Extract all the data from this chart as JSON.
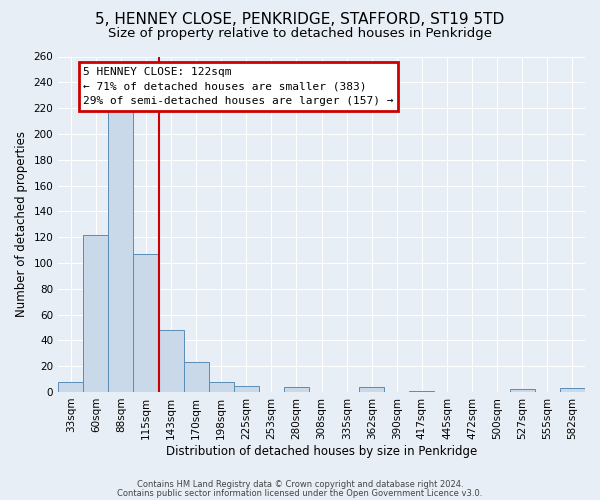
{
  "title": "5, HENNEY CLOSE, PENKRIDGE, STAFFORD, ST19 5TD",
  "subtitle": "Size of property relative to detached houses in Penkridge",
  "xlabel": "Distribution of detached houses by size in Penkridge",
  "ylabel": "Number of detached properties",
  "footer_line1": "Contains HM Land Registry data © Crown copyright and database right 2024.",
  "footer_line2": "Contains public sector information licensed under the Open Government Licence v3.0.",
  "bin_labels": [
    "33sqm",
    "60sqm",
    "88sqm",
    "115sqm",
    "143sqm",
    "170sqm",
    "198sqm",
    "225sqm",
    "253sqm",
    "280sqm",
    "308sqm",
    "335sqm",
    "362sqm",
    "390sqm",
    "417sqm",
    "445sqm",
    "472sqm",
    "500sqm",
    "527sqm",
    "555sqm",
    "582sqm"
  ],
  "bar_values": [
    8,
    122,
    219,
    107,
    48,
    23,
    8,
    5,
    0,
    4,
    0,
    0,
    4,
    0,
    1,
    0,
    0,
    0,
    2,
    0,
    3
  ],
  "bar_color": "#c9d9ea",
  "bar_edge_color": "#5a8db5",
  "vline_x_idx": 3,
  "vline_color": "#cc0000",
  "ylim": [
    0,
    260
  ],
  "yticks": [
    0,
    20,
    40,
    60,
    80,
    100,
    120,
    140,
    160,
    180,
    200,
    220,
    240,
    260
  ],
  "annotation_title": "5 HENNEY CLOSE: 122sqm",
  "annotation_line1": "← 71% of detached houses are smaller (383)",
  "annotation_line2": "29% of semi-detached houses are larger (157) →",
  "annotation_box_color": "#cc0000",
  "bg_color": "#e8eef5",
  "plot_bg_color": "#e8eef5",
  "grid_color": "#ffffff",
  "title_fontsize": 11,
  "subtitle_fontsize": 9.5,
  "axis_label_fontsize": 8.5,
  "tick_fontsize": 7.5,
  "annotation_fontsize": 8
}
